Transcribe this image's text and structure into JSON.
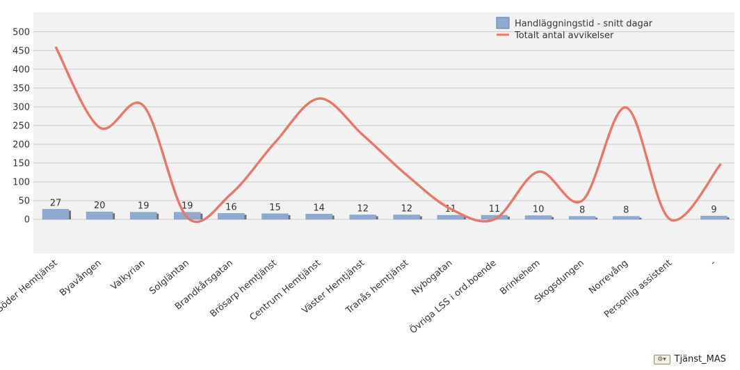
{
  "chart_data": {
    "type": "bar+line",
    "categories": [
      "Söder Hemtjänst",
      "Byavången",
      "Valkyrian",
      "Solgläntan",
      "Brandkårsgatan",
      "Brösarp hemtjänst",
      "Centrum Hemtjänst",
      "Väster Hemtjänst",
      "Tranås hemtjänst",
      "Nybogatan",
      "Övriga LSS i ord.boende",
      "Brinkehem",
      "Skogsdungen",
      "Norrevång",
      "Personlig assistent",
      "-"
    ],
    "series": [
      {
        "name": "Handläggningstid - snitt dagar",
        "type": "bar",
        "color": "#8faad0",
        "values": [
          27,
          20,
          19,
          19,
          16,
          15,
          14,
          12,
          12,
          11,
          11,
          10,
          8,
          8,
          null,
          9
        ]
      },
      {
        "name": "Totalt antal avvikelser",
        "type": "line",
        "color": "#e8786a",
        "values": [
          460,
          245,
          303,
          5,
          68,
          205,
          322,
          225,
          118,
          28,
          0,
          127,
          50,
          298,
          0,
          148
        ]
      }
    ],
    "data_labels": [
      "27",
      "20",
      "19",
      "19",
      "16",
      "15",
      "14",
      "12",
      "12",
      "11",
      "11",
      "10",
      "8",
      "8",
      "",
      "9"
    ],
    "yticks": [
      0,
      50,
      100,
      150,
      200,
      250,
      300,
      350,
      400,
      450,
      500
    ],
    "ytick_labels": [
      "0",
      "50",
      "100",
      "150",
      "200",
      "250",
      "300",
      "350",
      "400",
      "450",
      "500"
    ],
    "ylim": [
      -95,
      555
    ],
    "grid": true,
    "legend_position": "top-right"
  },
  "footer": {
    "icon": "chart-options-icon",
    "label": "Tjänst_MAS"
  }
}
